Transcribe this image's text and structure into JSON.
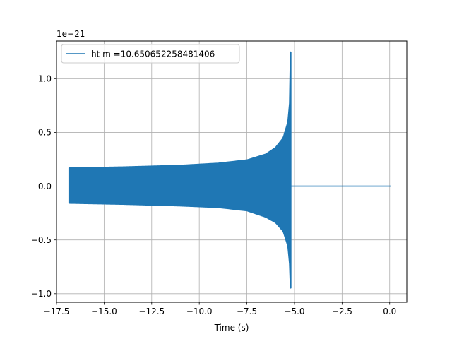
{
  "chart_data": {
    "type": "line",
    "title": "",
    "xlabel": "Time (s)",
    "ylabel": "",
    "y_offset_label": "1e−21",
    "xlim": [
      -17.5,
      0.9
    ],
    "ylim": [
      -1.08,
      1.35
    ],
    "x_ticks": [
      -17.5,
      -15.0,
      -12.5,
      -10.0,
      -7.5,
      -5.0,
      -2.5,
      0.0
    ],
    "x_tick_labels": [
      "−17.5",
      "−15.0",
      "−12.5",
      "−10.0",
      "−7.5",
      "−5.0",
      "−2.5",
      "0.0"
    ],
    "y_ticks": [
      -1.0,
      -0.5,
      0.0,
      0.5,
      1.0
    ],
    "y_tick_labels": [
      "−1.0",
      "−0.5",
      "0.0",
      "0.5",
      "1.0"
    ],
    "grid": true,
    "legend_position": "top-left",
    "series": [
      {
        "name": "ht m =10.650652258481406",
        "color": "#1f77b4",
        "signal_start": -16.85,
        "merger_time": -5.2,
        "signal_end": 0.05,
        "upper_envelope": [
          [
            -16.85,
            0.17
          ],
          [
            -14.0,
            0.18
          ],
          [
            -11.0,
            0.195
          ],
          [
            -9.0,
            0.215
          ],
          [
            -7.5,
            0.245
          ],
          [
            -6.5,
            0.3
          ],
          [
            -6.0,
            0.36
          ],
          [
            -5.6,
            0.45
          ],
          [
            -5.35,
            0.6
          ],
          [
            -5.25,
            0.8
          ],
          [
            -5.22,
            1.25
          ]
        ],
        "lower_envelope": [
          [
            -16.85,
            -0.16
          ],
          [
            -14.0,
            -0.17
          ],
          [
            -11.0,
            -0.185
          ],
          [
            -9.0,
            -0.2
          ],
          [
            -7.5,
            -0.23
          ],
          [
            -6.5,
            -0.29
          ],
          [
            -6.0,
            -0.34
          ],
          [
            -5.6,
            -0.42
          ],
          [
            -5.35,
            -0.56
          ],
          [
            -5.25,
            -0.75
          ],
          [
            -5.22,
            -0.95
          ]
        ]
      }
    ]
  }
}
